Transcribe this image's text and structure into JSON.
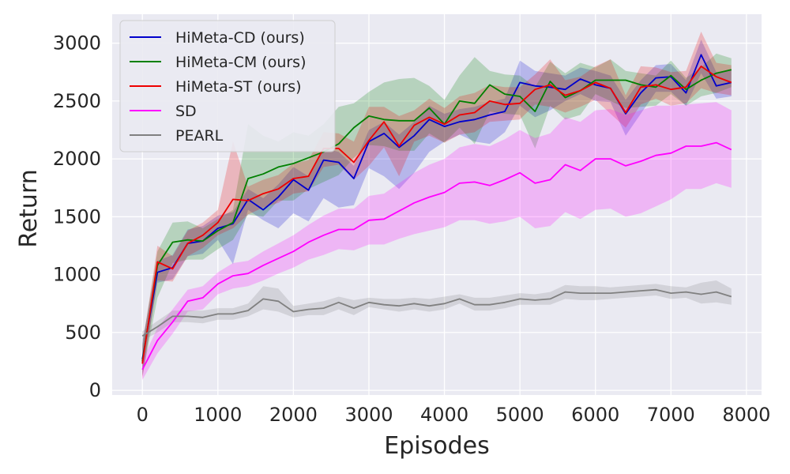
{
  "chart_data": {
    "type": "line",
    "title": "",
    "xlabel": "Episodes",
    "ylabel": "Return",
    "xlim": [
      -400,
      8200
    ],
    "ylim": [
      -40,
      3250
    ],
    "xticks": [
      0,
      1000,
      2000,
      3000,
      4000,
      5000,
      6000,
      7000,
      8000
    ],
    "yticks": [
      0,
      500,
      1000,
      1500,
      2000,
      2500,
      3000
    ],
    "grid": true,
    "legend_position": "top-left",
    "x": [
      0,
      200,
      400,
      600,
      800,
      1000,
      1200,
      1400,
      1600,
      1800,
      2000,
      2200,
      2400,
      2600,
      2800,
      3000,
      3200,
      3400,
      3600,
      3800,
      4000,
      4200,
      4400,
      4600,
      4800,
      5000,
      5200,
      5400,
      5600,
      5800,
      6000,
      6200,
      6400,
      6600,
      6800,
      7000,
      7200,
      7400,
      7600,
      7800
    ],
    "series": [
      {
        "name": "HiMeta-CD (ours)",
        "color": "#0000cc",
        "values": [
          270,
          1020,
          1060,
          1270,
          1290,
          1400,
          1440,
          1650,
          1560,
          1670,
          1820,
          1730,
          1990,
          1970,
          1830,
          2150,
          2220,
          2100,
          2200,
          2340,
          2280,
          2320,
          2340,
          2380,
          2410,
          2660,
          2630,
          2620,
          2600,
          2690,
          2640,
          2610,
          2390,
          2570,
          2700,
          2710,
          2570,
          2900,
          2630,
          2660
        ],
        "upper": [
          420,
          1120,
          1170,
          1390,
          1420,
          1510,
          1540,
          1740,
          1660,
          1780,
          1930,
          1850,
          2090,
          2060,
          1940,
          2250,
          2320,
          2210,
          2320,
          2460,
          2390,
          2430,
          2450,
          2490,
          2520,
          2850,
          2760,
          2740,
          2720,
          2790,
          2760,
          2720,
          2510,
          2680,
          2810,
          2820,
          2680,
          3030,
          2750,
          2770
        ],
        "lower": [
          130,
          930,
          960,
          1160,
          1180,
          1300,
          1090,
          1560,
          1470,
          1400,
          1530,
          1460,
          1660,
          1580,
          1600,
          1920,
          1850,
          1740,
          1880,
          2060,
          2150,
          2210,
          2150,
          2130,
          2230,
          2460,
          2360,
          2420,
          2500,
          2560,
          2500,
          2490,
          2200,
          2390,
          2580,
          2580,
          2460,
          2740,
          2520,
          2540
        ]
      },
      {
        "name": "HiMeta-CM (ours)",
        "color": "#008000",
        "values": [
          250,
          1080,
          1280,
          1300,
          1290,
          1380,
          1450,
          1830,
          1870,
          1930,
          1960,
          2010,
          2060,
          2130,
          2270,
          2370,
          2340,
          2330,
          2330,
          2440,
          2300,
          2500,
          2480,
          2640,
          2560,
          2540,
          2410,
          2670,
          2530,
          2590,
          2680,
          2680,
          2680,
          2640,
          2620,
          2720,
          2600,
          2680,
          2740,
          2770
        ],
        "upper": [
          400,
          1200,
          1450,
          1460,
          1400,
          1480,
          1560,
          2300,
          2200,
          2150,
          2230,
          2200,
          2300,
          2450,
          2480,
          2580,
          2660,
          2690,
          2700,
          2630,
          2510,
          2720,
          2880,
          2760,
          2730,
          2720,
          2620,
          2840,
          2740,
          2830,
          2790,
          2860,
          2760,
          2740,
          2720,
          2850,
          2700,
          2790,
          2910,
          2870
        ],
        "lower": [
          120,
          800,
          1100,
          1130,
          1130,
          1220,
          1300,
          1520,
          1500,
          1640,
          1640,
          1740,
          1800,
          1860,
          2010,
          2120,
          2110,
          2070,
          2070,
          2220,
          2140,
          2270,
          2130,
          2410,
          2390,
          2380,
          2090,
          2460,
          2340,
          2380,
          2560,
          2500,
          2440,
          2450,
          2460,
          2560,
          2460,
          2540,
          2570,
          2620
        ]
      },
      {
        "name": "HiMeta-ST (ours)",
        "color": "#ee0000",
        "values": [
          230,
          1110,
          1050,
          1270,
          1340,
          1450,
          1650,
          1640,
          1700,
          1740,
          1830,
          1850,
          2090,
          2090,
          1970,
          2160,
          2320,
          2110,
          2290,
          2360,
          2300,
          2380,
          2400,
          2500,
          2470,
          2480,
          2600,
          2640,
          2550,
          2590,
          2660,
          2610,
          2400,
          2620,
          2640,
          2600,
          2620,
          2800,
          2710,
          2660
        ],
        "upper": [
          380,
          1250,
          1160,
          1380,
          1450,
          1560,
          2150,
          1760,
          1820,
          1860,
          1960,
          1990,
          2230,
          2220,
          2150,
          2450,
          2450,
          2370,
          2420,
          2520,
          2440,
          2540,
          2570,
          2640,
          2620,
          2620,
          2730,
          2860,
          2680,
          2710,
          2800,
          2860,
          2550,
          2800,
          2790,
          2750,
          2760,
          3100,
          2830,
          2810
        ],
        "lower": [
          100,
          950,
          940,
          1160,
          1230,
          1340,
          1400,
          1520,
          1580,
          1620,
          1700,
          1720,
          1930,
          1950,
          1820,
          1940,
          2100,
          1850,
          2150,
          2200,
          2140,
          2210,
          2230,
          2320,
          2330,
          2340,
          2470,
          2450,
          2400,
          2450,
          2510,
          2390,
          2270,
          2470,
          2520,
          2460,
          2480,
          2610,
          2570,
          2550
        ]
      },
      {
        "name": "SD",
        "color": "#ff00ff",
        "values": [
          180,
          430,
          590,
          770,
          800,
          920,
          990,
          1010,
          1080,
          1140,
          1200,
          1280,
          1340,
          1390,
          1390,
          1470,
          1480,
          1550,
          1620,
          1670,
          1710,
          1790,
          1800,
          1770,
          1820,
          1880,
          1790,
          1820,
          1950,
          1900,
          2000,
          2000,
          1940,
          1980,
          2030,
          2050,
          2110,
          2110,
          2140,
          2080
        ],
        "upper": [
          260,
          540,
          700,
          870,
          900,
          1020,
          1100,
          1120,
          1200,
          1270,
          1340,
          1430,
          1510,
          1570,
          1570,
          1680,
          1700,
          1790,
          1880,
          1950,
          2000,
          2100,
          2130,
          2110,
          2170,
          2250,
          2180,
          2220,
          2360,
          2320,
          2420,
          2430,
          2380,
          2420,
          2460,
          2460,
          2470,
          2480,
          2490,
          2420
        ],
        "lower": [
          90,
          320,
          490,
          680,
          700,
          830,
          880,
          900,
          950,
          1010,
          1060,
          1130,
          1170,
          1220,
          1210,
          1260,
          1260,
          1310,
          1350,
          1380,
          1410,
          1470,
          1470,
          1440,
          1460,
          1500,
          1400,
          1420,
          1540,
          1480,
          1560,
          1570,
          1500,
          1530,
          1590,
          1650,
          1740,
          1740,
          1790,
          1750
        ]
      },
      {
        "name": "PEARL",
        "color": "#808080",
        "values": [
          470,
          550,
          640,
          640,
          630,
          660,
          660,
          690,
          790,
          770,
          680,
          700,
          710,
          760,
          710,
          760,
          740,
          730,
          750,
          730,
          750,
          790,
          740,
          740,
          760,
          790,
          780,
          790,
          850,
          840,
          840,
          840,
          850,
          860,
          870,
          840,
          850,
          830,
          850,
          810
        ],
        "upper": [
          510,
          600,
          690,
          690,
          690,
          710,
          710,
          750,
          900,
          880,
          730,
          750,
          770,
          810,
          780,
          800,
          790,
          790,
          800,
          790,
          810,
          830,
          800,
          800,
          820,
          840,
          830,
          850,
          910,
          900,
          900,
          890,
          900,
          910,
          920,
          900,
          890,
          930,
          950,
          880
        ],
        "lower": [
          430,
          500,
          590,
          590,
          580,
          610,
          610,
          640,
          700,
          680,
          630,
          650,
          650,
          700,
          650,
          720,
          700,
          680,
          700,
          680,
          700,
          750,
          690,
          690,
          710,
          740,
          740,
          740,
          790,
          780,
          780,
          790,
          800,
          810,
          820,
          790,
          800,
          750,
          760,
          740
        ]
      }
    ]
  }
}
